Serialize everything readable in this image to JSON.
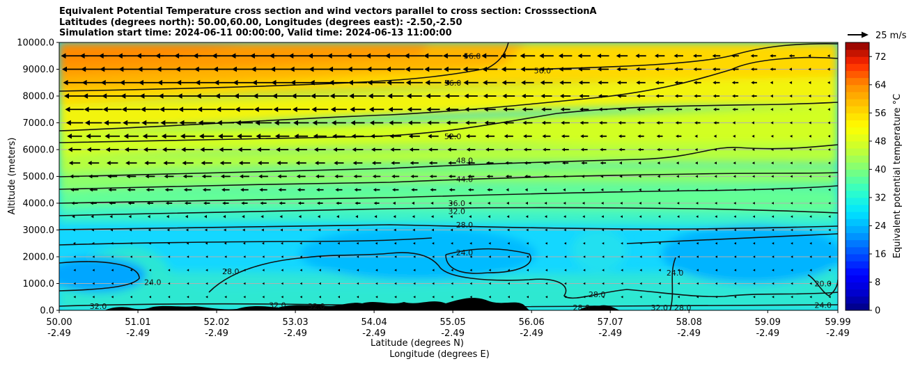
{
  "chart_data": {
    "type": "contour cross section",
    "title_lines": [
      "Equivalent Potential Temperature cross section and wind vectors parallel to cross section: CrosssectionA",
      "Latitudes (degrees north): 50.00,60.00, Longitudes (degrees east): -2.50,-2.50",
      "Simulation start time: 2024-06-11 00:00:00, Valid time: 2024-06-13 11:00:00"
    ],
    "ylabel": "Altitude (meters)",
    "xlabel_lines": [
      "Latitude (degrees N)",
      "Longitude (degrees E)"
    ],
    "ylim": [
      0,
      10000
    ],
    "yticks": [
      "0.0",
      "1000.0",
      "2000.0",
      "3000.0",
      "4000.0",
      "5000.0",
      "6000.0",
      "7000.0",
      "8000.0",
      "9000.0",
      "10000.0"
    ],
    "xlim": [
      50.0,
      59.99
    ],
    "xticks": [
      {
        "lat": "50.00",
        "lon": "-2.49"
      },
      {
        "lat": "51.01",
        "lon": "-2.49"
      },
      {
        "lat": "52.02",
        "lon": "-2.49"
      },
      {
        "lat": "53.03",
        "lon": "-2.49"
      },
      {
        "lat": "54.04",
        "lon": "-2.49"
      },
      {
        "lat": "55.05",
        "lon": "-2.49"
      },
      {
        "lat": "56.06",
        "lon": "-2.49"
      },
      {
        "lat": "57.07",
        "lon": "-2.49"
      },
      {
        "lat": "58.08",
        "lon": "-2.49"
      },
      {
        "lat": "59.09",
        "lon": "-2.49"
      },
      {
        "lat": "59.99",
        "lon": "-2.49"
      }
    ],
    "grid": "horizontal",
    "colorbar": {
      "label": "Equivalent potential temperature °C",
      "range": [
        0,
        76
      ],
      "ticks": [
        "0",
        "8",
        "16",
        "24",
        "32",
        "40",
        "48",
        "56",
        "64",
        "72"
      ]
    },
    "wind_key": "25 m/s",
    "contour_labels": [
      {
        "text": "56.0",
        "lat": 55.3,
        "alt": 9500
      },
      {
        "text": "56.0",
        "lat": 56.2,
        "alt": 8950
      },
      {
        "text": "56.0",
        "lat": 55.05,
        "alt": 8500
      },
      {
        "text": "52.0",
        "lat": 55.05,
        "alt": 6500
      },
      {
        "text": "48.0",
        "lat": 55.2,
        "alt": 5600
      },
      {
        "text": "44.0",
        "lat": 55.2,
        "alt": 4900
      },
      {
        "text": "36.0",
        "lat": 55.1,
        "alt": 4000
      },
      {
        "text": "32.0",
        "lat": 55.1,
        "alt": 3700
      },
      {
        "text": "28.0",
        "lat": 55.2,
        "alt": 3200
      },
      {
        "text": "24.0",
        "lat": 55.2,
        "alt": 2150
      },
      {
        "text": "24.0",
        "lat": 51.2,
        "alt": 1050
      },
      {
        "text": "28.0",
        "lat": 52.2,
        "alt": 1450
      },
      {
        "text": "32.0",
        "lat": 50.5,
        "alt": 150
      },
      {
        "text": "32.0",
        "lat": 52.8,
        "alt": 200
      },
      {
        "text": "32.0",
        "lat": 53.3,
        "alt": 150
      },
      {
        "text": "28.0",
        "lat": 56.7,
        "alt": 100
      },
      {
        "text": "28.0",
        "lat": 56.9,
        "alt": 600
      },
      {
        "text": "32.0",
        "lat": 57.7,
        "alt": 100
      },
      {
        "text": "28.0",
        "lat": 58.0,
        "alt": 100
      },
      {
        "text": "24.0",
        "lat": 57.9,
        "alt": 1400
      },
      {
        "text": "20.0",
        "lat": 59.8,
        "alt": 1000
      },
      {
        "text": "24.0",
        "lat": 59.8,
        "alt": 200
      }
    ]
  }
}
